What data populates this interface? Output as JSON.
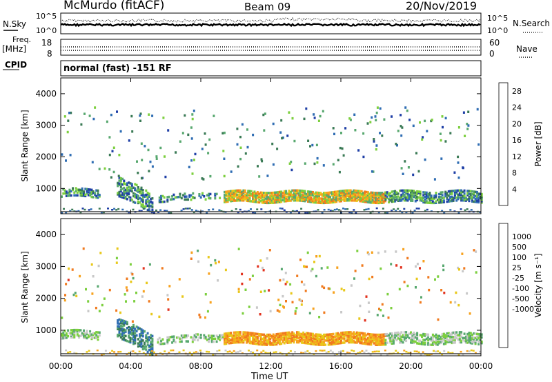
{
  "header": {
    "station": "McMurdo (fitACF)",
    "beam": "Beam 09",
    "date": "20/Nov/2019"
  },
  "left_labels": {
    "nsky": "N.Sky",
    "freq": "Freq.",
    "freq_unit": "[MHz]",
    "cpid": "CPID"
  },
  "right_labels": {
    "nsearch": "N.Search",
    "nave": "Nave"
  },
  "cpid_text": "normal (fast) -151 RF",
  "colors": {
    "power_scale": [
      "#0000ff",
      "#1f3fa6",
      "#2f6db3",
      "#3a7a55",
      "#58a86f",
      "#7ccf3e",
      "#e8c81b",
      "#f7a21e",
      "#f07a1e",
      "#e2321e",
      "#d40000"
    ],
    "velocity_scale": [
      "#0000ff",
      "#1f3fa6",
      "#2f6db3",
      "#3a7a55",
      "#58a86f",
      "#7ccf3e",
      "#c8c8c8",
      "#e8c81b",
      "#f7a21e",
      "#f07a1e",
      "#e2321e",
      "#d40000"
    ]
  },
  "chart_data": [
    {
      "type": "line",
      "panel": "noise",
      "left_axis": {
        "label": "N.Sky",
        "ticks": [
          "10^5",
          "10^0"
        ]
      },
      "right_axis": {
        "label": "N.Search",
        "ticks": [
          "10^5",
          "10^0"
        ]
      },
      "notes": "Noise lines near 10^1-10^2 across the day"
    },
    {
      "type": "line",
      "panel": "frequency",
      "left_axis": {
        "label": "Freq. [MHz]",
        "ticks": [
          "18",
          "8"
        ],
        "ylim": [
          8,
          18
        ]
      },
      "right_axis": {
        "label": "Nave",
        "ticks": [
          "60",
          "0"
        ],
        "ylim": [
          0,
          60
        ]
      },
      "notes": "Dotted lines approximately constant"
    },
    {
      "type": "heatmap",
      "panel": "power",
      "xlabel": "",
      "ylabel": "Slant Range [km]",
      "x_ticks": [
        "00:00",
        "04:00",
        "08:00",
        "12:00",
        "16:00",
        "20:00",
        "00:00"
      ],
      "y_ticks": [
        "1000",
        "2000",
        "3000",
        "4000"
      ],
      "ylim": [
        200,
        4500
      ],
      "colorbar": {
        "label": "Power [dB]",
        "ticks": [
          "4",
          "8",
          "12",
          "16",
          "20",
          "24",
          "28"
        ],
        "range": [
          0,
          30
        ]
      }
    },
    {
      "type": "heatmap",
      "panel": "velocity",
      "xlabel": "Time UT",
      "ylabel": "Slant Range [km]",
      "x_ticks": [
        "00:00",
        "04:00",
        "08:00",
        "12:00",
        "16:00",
        "20:00",
        "00:00"
      ],
      "y_ticks": [
        "1000",
        "2000",
        "3000",
        "4000"
      ],
      "ylim": [
        200,
        4500
      ],
      "colorbar": {
        "label": "Velocity [m s⁻¹]",
        "ticks": [
          "1000",
          "500",
          "100",
          "25",
          "-25",
          "-100",
          "-500",
          "-1000"
        ]
      }
    }
  ]
}
